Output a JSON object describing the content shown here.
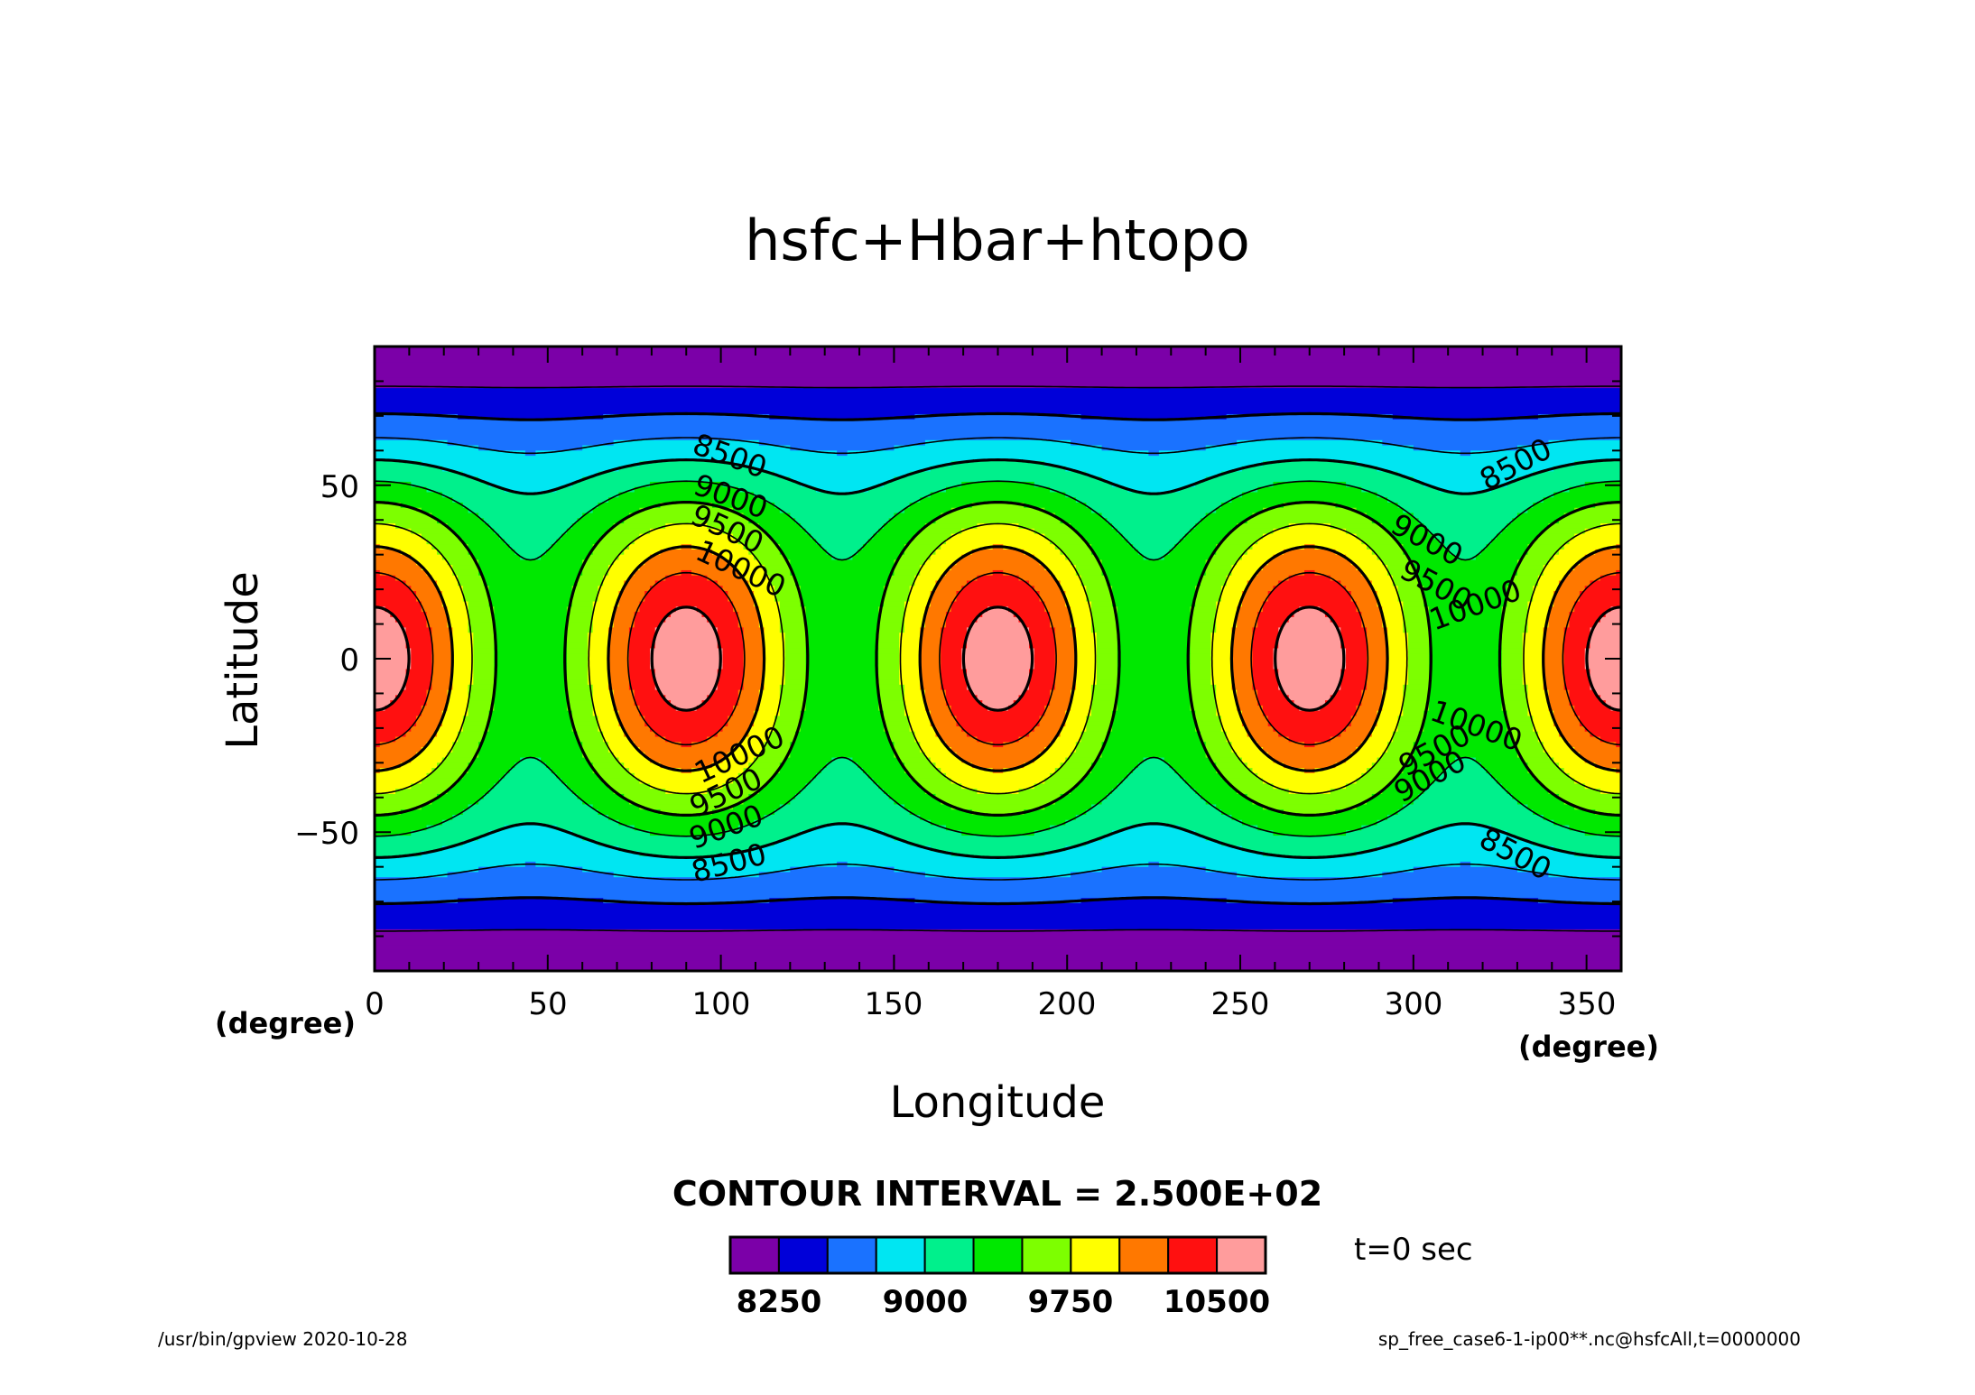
{
  "title": "hsfc+Hbar+htopo",
  "xaxis": {
    "label": "Longitude",
    "unit": "(degree)",
    "ticks": [
      "0",
      "50",
      "100",
      "150",
      "200",
      "250",
      "300",
      "350"
    ]
  },
  "yaxis": {
    "label": "Latitude",
    "unit": "(degree)",
    "ticks": [
      "50",
      "0",
      "−50"
    ]
  },
  "contour_interval_text": "CONTOUR INTERVAL = 2.500E+02",
  "colorbar": {
    "labels": [
      "8250",
      "9000",
      "9750",
      "10500"
    ],
    "colors": [
      "#7b00a8",
      "#0000d9",
      "#1a72ff",
      "#00e6f2",
      "#00f08c",
      "#00e800",
      "#7dff00",
      "#ffff00",
      "#ff7800",
      "#ff1010",
      "#ff9c9c"
    ]
  },
  "time_label": "t=0 sec",
  "footer": {
    "left": "/usr/bin/gpview   2020-10-28",
    "right": "sp_free_case6-1-ip00**.nc@hsfcAll,t=0000000"
  },
  "contour_labels": [
    "8500",
    "9000",
    "9500",
    "10000",
    "8500",
    "9000",
    "9500",
    "10000",
    "10000",
    "9500",
    "9000",
    "8500",
    "10000",
    "9500",
    "9000",
    "8500"
  ],
  "chart_data": {
    "type": "heatmap",
    "title": "hsfc+Hbar+htopo",
    "xlabel": "Longitude",
    "ylabel": "Latitude",
    "xunit": "(degree)",
    "yunit": "(degree)",
    "xlim": [
      0,
      360
    ],
    "ylim": [
      -90,
      90
    ],
    "xticks": [
      0,
      50,
      100,
      150,
      200,
      250,
      300,
      350
    ],
    "yticks": [
      -50,
      0,
      50
    ],
    "contour_interval": 250,
    "levels": [
      8250,
      8500,
      8750,
      9000,
      9250,
      9500,
      9750,
      10000,
      10250,
      10500
    ],
    "colorbar_ticks": [
      8250,
      9000,
      9750,
      10500
    ],
    "field_summary": {
      "min_approx": 8000,
      "max_approx": 10650,
      "maxima_longitudes": [
        0,
        90,
        180,
        270,
        360
      ],
      "pattern": "zonal wavenumber-4 wave symmetric about equator"
    }
  }
}
